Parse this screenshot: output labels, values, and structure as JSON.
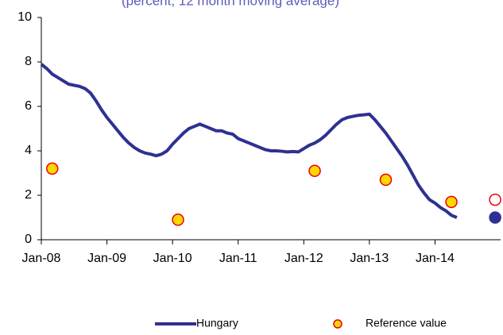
{
  "chart_data": {
    "type": "line",
    "subtitle": "(percent, 12 month moving average)",
    "xlim": [
      "2008-01",
      "2015-01"
    ],
    "xticks": [
      {
        "value": "2008-01",
        "label": "Jan-08"
      },
      {
        "value": "2009-01",
        "label": "Jan-09"
      },
      {
        "value": "2010-01",
        "label": "Jan-10"
      },
      {
        "value": "2011-01",
        "label": "Jan-11"
      },
      {
        "value": "2012-01",
        "label": "Jan-12"
      },
      {
        "value": "2013-01",
        "label": "Jan-13"
      },
      {
        "value": "2014-01",
        "label": "Jan-14"
      }
    ],
    "ylim": [
      0,
      10
    ],
    "yticks": [
      0,
      2,
      4,
      6,
      8,
      10
    ],
    "legend": "bottom",
    "series": [
      {
        "name": "Hungary",
        "kind": "line",
        "color": "#2e3192",
        "x": [
          "2008-01",
          "2008-02",
          "2008-03",
          "2008-04",
          "2008-05",
          "2008-06",
          "2008-07",
          "2008-08",
          "2008-09",
          "2008-10",
          "2008-11",
          "2008-12",
          "2009-01",
          "2009-02",
          "2009-03",
          "2009-04",
          "2009-05",
          "2009-06",
          "2009-07",
          "2009-08",
          "2009-09",
          "2009-10",
          "2009-11",
          "2009-12",
          "2010-01",
          "2010-02",
          "2010-03",
          "2010-04",
          "2010-05",
          "2010-06",
          "2010-07",
          "2010-08",
          "2010-09",
          "2010-10",
          "2010-11",
          "2010-12",
          "2011-01",
          "2011-02",
          "2011-03",
          "2011-04",
          "2011-05",
          "2011-06",
          "2011-07",
          "2011-08",
          "2011-09",
          "2011-10",
          "2011-11",
          "2011-12",
          "2012-01",
          "2012-02",
          "2012-03",
          "2012-04",
          "2012-05",
          "2012-06",
          "2012-07",
          "2012-08",
          "2012-09",
          "2012-10",
          "2012-11",
          "2012-12",
          "2013-01",
          "2013-02",
          "2013-03",
          "2013-04",
          "2013-05",
          "2013-06",
          "2013-07",
          "2013-08",
          "2013-09",
          "2013-10",
          "2013-11",
          "2013-12",
          "2014-01",
          "2014-02",
          "2014-03",
          "2014-04",
          "2014-05"
        ],
        "values": [
          7.9,
          7.7,
          7.45,
          7.3,
          7.15,
          7.0,
          6.95,
          6.9,
          6.8,
          6.6,
          6.25,
          5.85,
          5.5,
          5.2,
          4.9,
          4.6,
          4.35,
          4.15,
          4.0,
          3.9,
          3.85,
          3.78,
          3.85,
          4.0,
          4.3,
          4.55,
          4.8,
          5.0,
          5.1,
          5.2,
          5.1,
          5.0,
          4.9,
          4.9,
          4.8,
          4.75,
          4.55,
          4.45,
          4.35,
          4.25,
          4.15,
          4.05,
          4.0,
          4.0,
          3.98,
          3.95,
          3.97,
          3.95,
          4.1,
          4.25,
          4.35,
          4.5,
          4.7,
          4.95,
          5.2,
          5.4,
          5.5,
          5.55,
          5.6,
          5.62,
          5.65,
          5.4,
          5.1,
          4.8,
          4.45,
          4.1,
          3.75,
          3.35,
          2.9,
          2.45,
          2.1,
          1.8,
          1.65,
          1.45,
          1.3,
          1.1,
          1.0
        ]
      },
      {
        "name": "Reference value",
        "kind": "scatter",
        "color": "#ffd700",
        "edge": "#e8000b",
        "x": [
          "2008-03",
          "2010-02",
          "2012-03",
          "2013-04",
          "2014-04"
        ],
        "values": [
          3.2,
          0.9,
          3.1,
          2.7,
          1.7
        ]
      },
      {
        "kind": "scatter",
        "color": "#ffffff",
        "edge": "#e8000b",
        "x": [
          "2014-12"
        ],
        "values": [
          1.8
        ]
      },
      {
        "kind": "scatter",
        "color": "#2e3192",
        "edge": "#2e3192",
        "x": [
          "2014-12"
        ],
        "values": [
          1.0
        ]
      }
    ]
  }
}
